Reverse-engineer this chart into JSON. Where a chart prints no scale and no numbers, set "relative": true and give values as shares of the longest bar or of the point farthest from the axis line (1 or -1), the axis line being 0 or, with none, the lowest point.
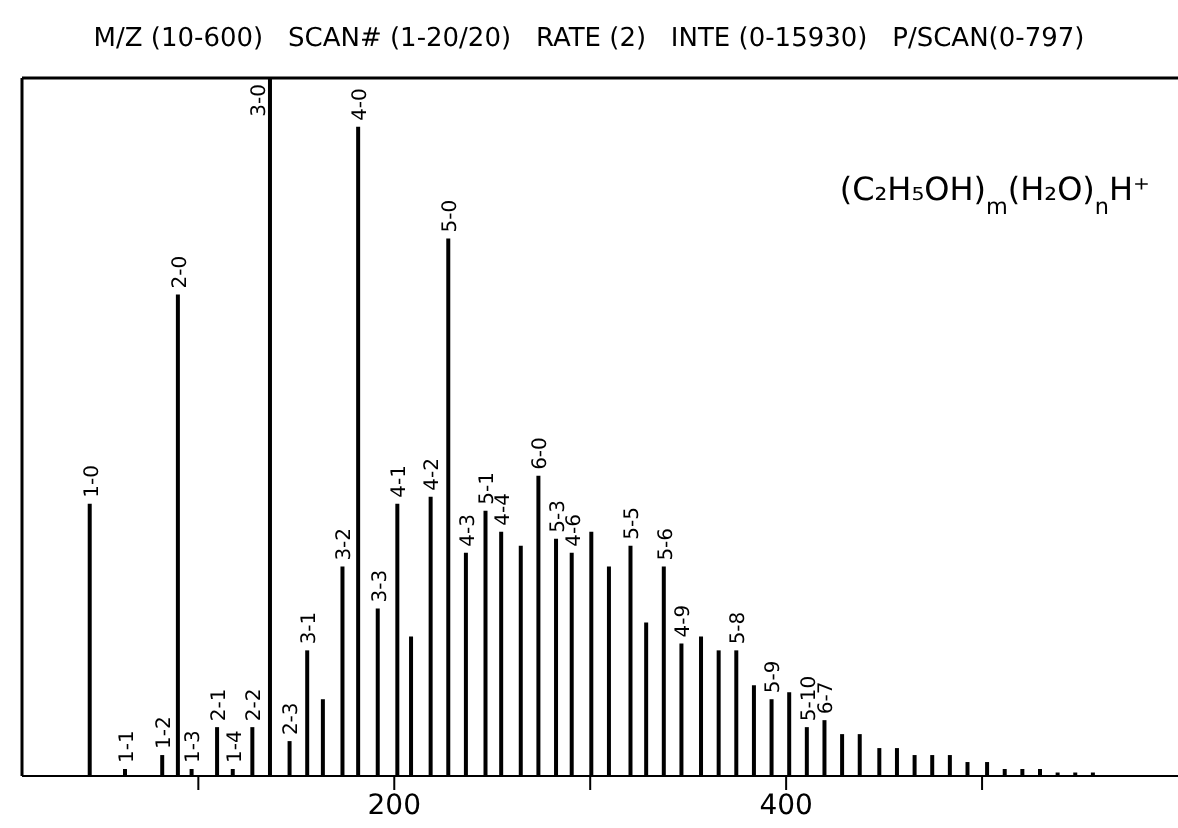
{
  "chart_data": {
    "type": "bar",
    "relative": true,
    "title": "M/Z (10-600)   SCAN# (1-20/20)   RATE (2)   INTE (0-15930)   P/SCAN(0-797)",
    "color": "#000000",
    "xlim": [
      10,
      600
    ],
    "xticks": [
      {
        "value": 100,
        "label": null
      },
      200,
      {
        "value": 300,
        "label": null
      },
      400,
      {
        "value": 500,
        "label": null
      }
    ],
    "tick_labels": "x",
    "x": [
      45,
      63,
      82,
      90,
      97,
      110,
      118,
      128,
      137,
      147,
      156,
      164,
      174,
      182,
      192,
      202,
      209,
      219,
      228,
      237,
      247,
      255,
      265,
      274,
      283,
      291,
      301,
      310,
      321,
      329,
      338,
      347,
      357,
      366,
      375,
      384,
      393,
      402,
      411,
      420,
      429,
      438,
      448,
      457,
      466,
      475,
      484,
      493,
      503,
      512,
      521,
      530,
      539,
      548,
      557
    ],
    "values": [
      0.39,
      0.01,
      0.03,
      0.69,
      0.01,
      0.07,
      0.01,
      0.07,
      1,
      0.05,
      0.18,
      0.11,
      0.3,
      0.93,
      0.24,
      0.39,
      0.2,
      0.4,
      0.77,
      0.32,
      0.38,
      0.35,
      0.33,
      0.43,
      0.34,
      0.32,
      0.35,
      0.3,
      0.33,
      0.22,
      0.3,
      0.19,
      0.2,
      0.18,
      0.18,
      0.13,
      0.11,
      0.12,
      0.07,
      0.08,
      0.06,
      0.06,
      0.04,
      0.04,
      0.03,
      0.03,
      0.03,
      0.02,
      0.02,
      0.01,
      0.01,
      0.01,
      0.005,
      0.005,
      0.005
    ],
    "annotations": [
      "(C₂H₅OH)$_{m}$(H₂O)$_{n}$H⁺",
      {
        "text": "1-0",
        "x": 45,
        "y": 0.39
      },
      {
        "text": "1-1",
        "x": 63,
        "y": 0.01
      },
      {
        "text": "1-2",
        "x": 82,
        "y": 0.03
      },
      {
        "text": "2-0",
        "x": 90,
        "y": 0.69
      },
      {
        "text": "1-3",
        "x": 97,
        "y": 0.01
      },
      {
        "text": "2-1",
        "x": 110,
        "y": 0.07
      },
      {
        "text": "1-4",
        "x": 118,
        "y": 0.01
      },
      {
        "text": "2-2",
        "x": 128,
        "y": 0.07
      },
      {
        "text": "3-0",
        "x": 137,
        "y": 1
      },
      {
        "text": "2-3",
        "x": 147,
        "y": 0.05
      },
      {
        "text": "3-1",
        "x": 156,
        "y": 0.18
      },
      {
        "text": "3-2",
        "x": 174,
        "y": 0.3
      },
      {
        "text": "4-0",
        "x": 182,
        "y": 0.93
      },
      {
        "text": "3-3",
        "x": 192,
        "y": 0.24
      },
      {
        "text": "4-1",
        "x": 202,
        "y": 0.39
      },
      {
        "text": "4-2",
        "x": 219,
        "y": 0.4
      },
      {
        "text": "5-0",
        "x": 228,
        "y": 0.77
      },
      {
        "text": "4-3",
        "x": 237,
        "y": 0.32
      },
      {
        "text": "5-1",
        "x": 247,
        "y": 0.38
      },
      {
        "text": "4-4",
        "x": 255,
        "y": 0.35
      },
      {
        "text": "6-0",
        "x": 274,
        "y": 0.43
      },
      {
        "text": "5-3",
        "x": 283,
        "y": 0.34
      },
      {
        "text": "4-6",
        "x": 291,
        "y": 0.32
      },
      {
        "text": "5-5",
        "x": 321,
        "y": 0.33
      },
      {
        "text": "5-6",
        "x": 338,
        "y": 0.3
      },
      {
        "text": "4-9",
        "x": 347,
        "y": 0.19
      },
      {
        "text": "5-8",
        "x": 375,
        "y": 0.18
      },
      {
        "text": "5-9",
        "x": 393,
        "y": 0.11
      },
      {
        "text": "5-10",
        "x": 411,
        "y": 0.07
      },
      {
        "text": "6-7",
        "x": 420,
        "y": 0.08
      }
    ]
  }
}
